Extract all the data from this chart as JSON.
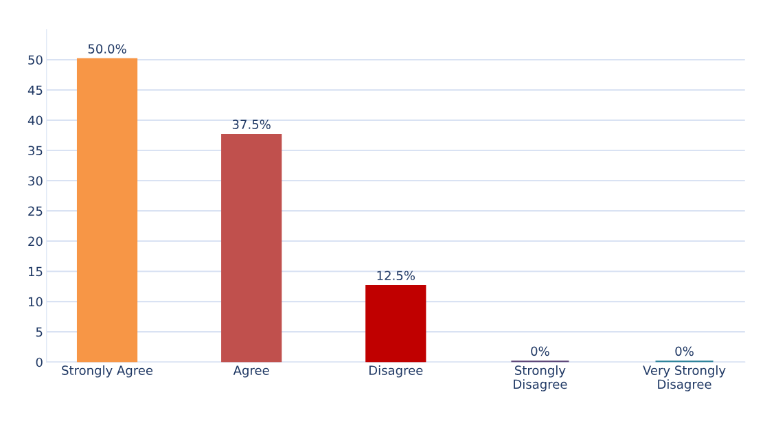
{
  "chart_data": {
    "type": "bar",
    "categories": [
      "Strongly Agree",
      "Agree",
      "Disagree",
      "Strongly\nDisagree",
      "Very Strongly\nDisagree"
    ],
    "values": [
      50,
      37.5,
      12.5,
      0,
      0
    ],
    "value_labels": [
      "50.0%",
      "37.5%",
      "12.5%",
      "0%",
      "0%"
    ],
    "colors": [
      "#f79646",
      "#c0504d",
      "#c00000",
      "#604a7b",
      "#31859c"
    ],
    "ylim": [
      0,
      55
    ],
    "yticks": [
      0,
      5,
      10,
      15,
      20,
      25,
      30,
      35,
      40,
      45,
      50
    ],
    "grid": "y"
  }
}
